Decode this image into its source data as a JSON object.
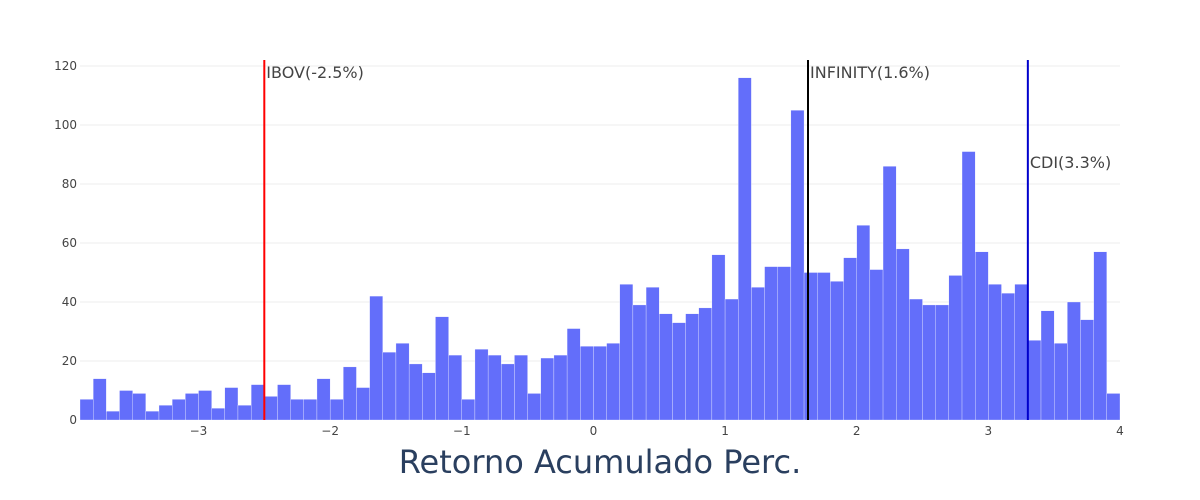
{
  "chart_data": {
    "type": "bar",
    "subtype": "histogram",
    "title": "",
    "xlabel": "Retorno Acumulado Perc.",
    "ylabel": "",
    "xlim": [
      -3.9,
      4.0
    ],
    "ylim": [
      0,
      120
    ],
    "bin_width": 0.1,
    "x_ticks": [
      -3,
      -2,
      -1,
      0,
      1,
      2,
      3,
      4
    ],
    "x_tick_labels": [
      "−3",
      "−2",
      "−1",
      "0",
      "1",
      "2",
      "3",
      "4"
    ],
    "y_ticks": [
      0,
      20,
      40,
      60,
      80,
      100,
      120
    ],
    "y_tick_labels": [
      "0",
      "20",
      "40",
      "60",
      "80",
      "100",
      "120"
    ],
    "grid": "horizontal",
    "bar_color": "#636efa",
    "bin_starts": [
      -3.9,
      -3.8,
      -3.7,
      -3.6,
      -3.5,
      -3.4,
      -3.3,
      -3.2,
      -3.1,
      -3.0,
      -2.9,
      -2.8,
      -2.7,
      -2.6,
      -2.5,
      -2.4,
      -2.3,
      -2.2,
      -2.1,
      -2.0,
      -1.9,
      -1.8,
      -1.7,
      -1.6,
      -1.5,
      -1.4,
      -1.3,
      -1.2,
      -1.1,
      -1.0,
      -0.9,
      -0.8,
      -0.7,
      -0.6,
      -0.5,
      -0.4,
      -0.3,
      -0.2,
      -0.1,
      0.0,
      0.1,
      0.2,
      0.3,
      0.4,
      0.5,
      0.6,
      0.7,
      0.8,
      0.9,
      1.0,
      1.1,
      1.2,
      1.3,
      1.4,
      1.5,
      1.6,
      1.7,
      1.8,
      1.9,
      2.0,
      2.1,
      2.2,
      2.3,
      2.4,
      2.5,
      2.6,
      2.7,
      2.8,
      2.9,
      3.0,
      3.1,
      3.2,
      3.3,
      3.4,
      3.5,
      3.6,
      3.7,
      3.8,
      3.9
    ],
    "values": [
      7,
      14,
      3,
      10,
      9,
      3,
      5,
      7,
      9,
      10,
      4,
      11,
      5,
      12,
      8,
      12,
      7,
      7,
      14,
      7,
      18,
      11,
      42,
      23,
      26,
      19,
      16,
      35,
      22,
      7,
      24,
      22,
      19,
      22,
      9,
      21,
      22,
      31,
      25,
      25,
      26,
      46,
      39,
      45,
      36,
      33,
      36,
      38,
      56,
      41,
      116,
      45,
      52,
      52,
      105,
      50,
      50,
      47,
      55,
      66,
      51,
      86,
      58,
      41,
      39,
      39,
      49,
      91,
      57,
      46,
      43,
      46,
      27,
      37,
      26,
      40,
      34,
      57,
      9
    ],
    "annotations": [
      {
        "x": -2.5,
        "label": "IBOV(-2.5%)",
        "color": "#ff0000"
      },
      {
        "x": 1.63,
        "label": "INFINITY(1.6%)",
        "color": "#000000"
      },
      {
        "x": 3.3,
        "label": "CDI(3.3%)",
        "color": "#0000cc"
      }
    ]
  }
}
